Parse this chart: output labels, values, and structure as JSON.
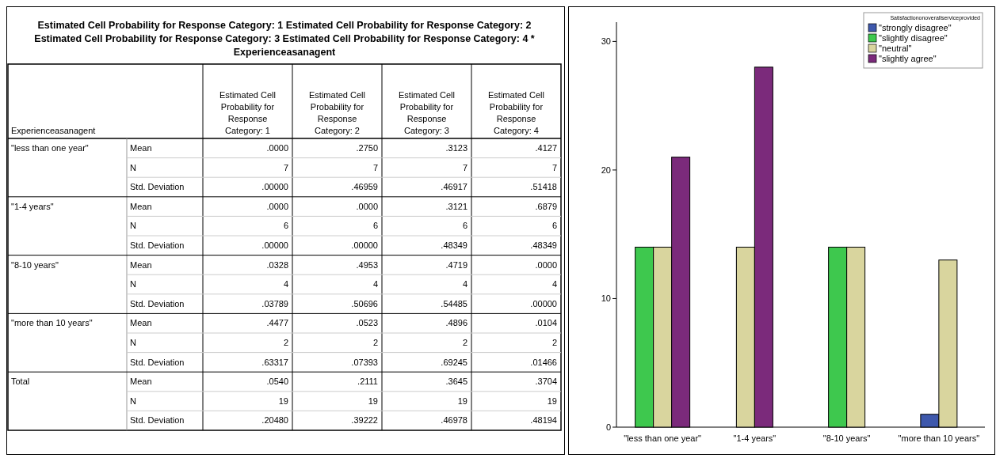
{
  "chart_data": [
    {
      "type": "other",
      "title": "Estimated Cell Probability for Response Category: 1 Estimated Cell Probability for Response Category: 2 Estimated Cell Probability for Response Category: 3 Estimated Cell Probability for Response Category: 4 * Experienceasanagent",
      "ylabel": "Experienceasanagent",
      "categories": [
        "Estimated Cell Probability for Response Category: 1",
        "Estimated Cell Probability for Response Category: 2",
        "Estimated Cell Probability for Response Category: 3",
        "Estimated Cell Probability for Response Category: 4"
      ],
      "y_categories": [
        "\"less than one year\"",
        null,
        null,
        "\"1-4 years\"",
        null,
        null,
        "\"8-10 years\"",
        null,
        null,
        "\"more than 10 years\"",
        null,
        null,
        "Total",
        null,
        null
      ],
      "y2_categories": [
        "Mean",
        "N",
        "Std. Deviation",
        "Mean",
        "N",
        "Std. Deviation",
        "Mean",
        "N",
        "Std. Deviation",
        "Mean",
        "N",
        "Std. Deviation",
        "Mean",
        "N",
        "Std. Deviation"
      ],
      "cell_labels": [
        [
          ".0000",
          ".2750",
          ".3123",
          ".4127"
        ],
        [
          "7",
          "7",
          "7",
          "7"
        ],
        [
          ".00000",
          ".46959",
          ".46917",
          ".51418"
        ],
        [
          ".0000",
          ".0000",
          ".3121",
          ".6879"
        ],
        [
          "6",
          "6",
          "6",
          "6"
        ],
        [
          ".00000",
          ".00000",
          ".48349",
          ".48349"
        ],
        [
          ".0328",
          ".4953",
          ".4719",
          ".0000"
        ],
        [
          "4",
          "4",
          "4",
          "4"
        ],
        [
          ".03789",
          ".50696",
          ".54485",
          ".00000"
        ],
        [
          ".4477",
          ".0523",
          ".4896",
          ".0104"
        ],
        [
          "2",
          "2",
          "2",
          "2"
        ],
        [
          ".63317",
          ".07393",
          ".69245",
          ".01466"
        ],
        [
          ".0540",
          ".2111",
          ".3645",
          ".3704"
        ],
        [
          "19",
          "19",
          "19",
          "19"
        ],
        [
          ".20480",
          ".39222",
          ".46978",
          ".48194"
        ]
      ]
    },
    {
      "type": "bar",
      "categories": [
        "\"less than one year\"",
        "\"1-4 years\"",
        "\"8-10 years\"",
        "\"more than 10 years\""
      ],
      "legend_title": "Satisfactiononoverallserviceprovided",
      "legend": "top right",
      "ylim": [
        0,
        31.5
      ],
      "yticks": [
        0,
        10,
        20,
        30
      ],
      "series": [
        {
          "name": "\"strongly disagree\"",
          "color": "#3e58ac",
          "values": [
            null,
            null,
            null,
            1
          ]
        },
        {
          "name": "\"slightly disagree\"",
          "color": "#3ec84e",
          "values": [
            14,
            null,
            14,
            null
          ]
        },
        {
          "name": "\"neutral\"",
          "color": "#d9d59e",
          "values": [
            14,
            14,
            14,
            13
          ]
        },
        {
          "name": "\"slightly agree\"",
          "color": "#7b2a7b",
          "values": [
            21,
            28,
            null,
            null
          ]
        }
      ]
    }
  ]
}
